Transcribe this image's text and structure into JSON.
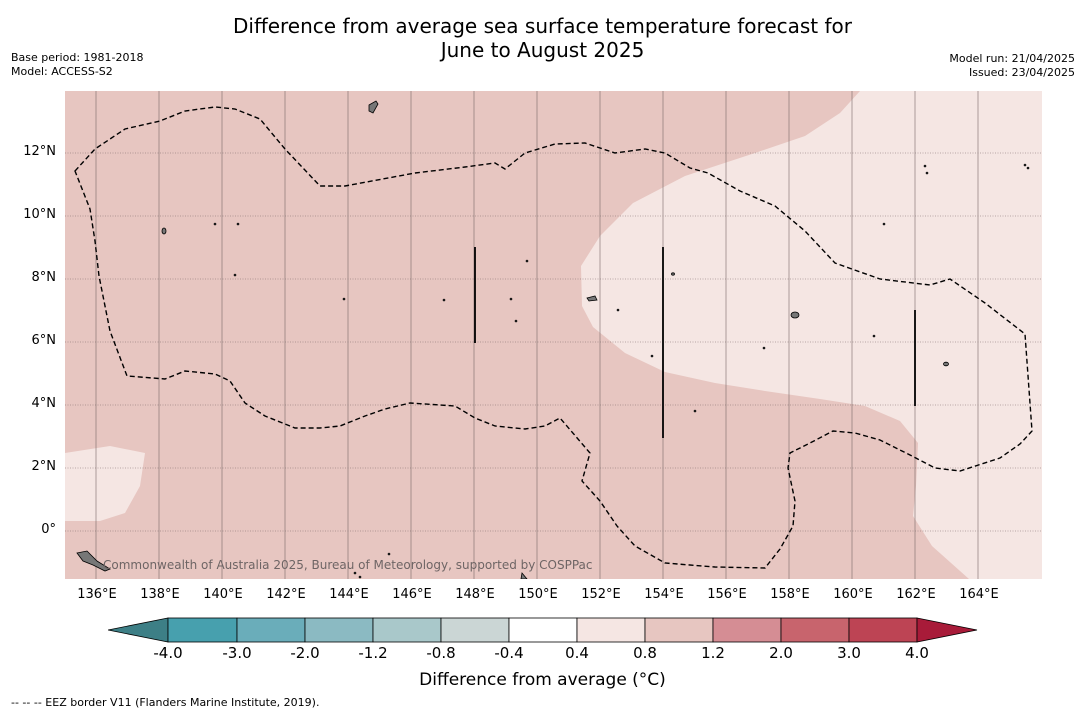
{
  "title_line1": "Difference from average sea surface temperature forecast for",
  "title_line2": "June to August 2025",
  "base_period": "Base period: 1981-2018",
  "model": "Model: ACCESS-S2",
  "model_run": "Model run: 21/04/2025",
  "issued": "Issued: 23/04/2025",
  "latitude_labels": [
    "12°N",
    "10°N",
    "8°N",
    "6°N",
    "4°N",
    "2°N",
    "0°"
  ],
  "longitude_labels": [
    "136°E",
    "138°E",
    "140°E",
    "142°E",
    "144°E",
    "146°E",
    "148°E",
    "150°E",
    "152°E",
    "154°E",
    "156°E",
    "158°E",
    "160°E",
    "162°E",
    "164°E"
  ],
  "copyright": "Commonwealth of Australia 2025, Bureau of Meteorology, supported by COSPPac",
  "colorbar": {
    "tick_labels": [
      "-4.0",
      "-3.0",
      "-2.0",
      "-1.2",
      "-0.8",
      "-0.4",
      "0.4",
      "0.8",
      "1.2",
      "2.0",
      "3.0",
      "4.0"
    ],
    "colors": [
      "#3d7f86",
      "#47a0ae",
      "#6aadba",
      "#8bbac2",
      "#a9c8ca",
      "#cbd6d5",
      "#ffffff",
      "#f5e6e3",
      "#e7c6c1",
      "#d58d94",
      "#c8646d",
      "#bd4454",
      "#a81b39"
    ],
    "label": "Difference from average (°C)"
  },
  "dominant_category": "0.8 to 1.2",
  "warm_region_category": "0.4 to 0.8",
  "footnote": "-- -- -- EEZ border V11 (Flanders Marine Institute, 2019)."
}
